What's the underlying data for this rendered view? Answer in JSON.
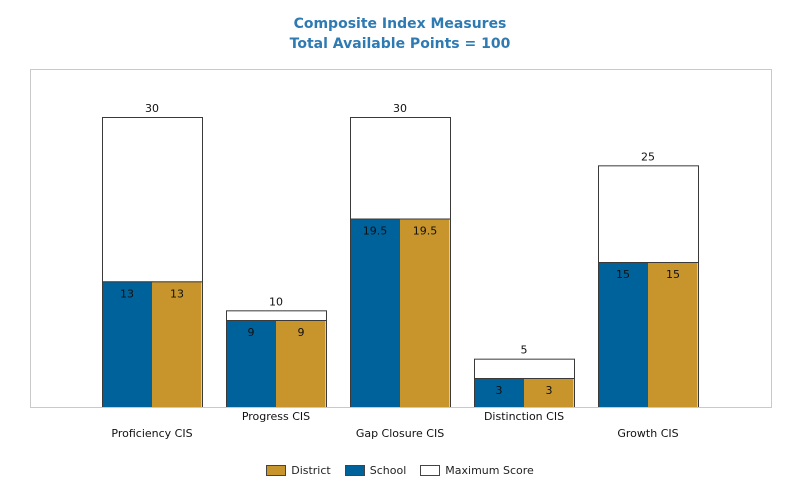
{
  "chart_data": {
    "type": "bar",
    "title": "Composite Index Measures",
    "subtitle": "Total Available Points = 100",
    "categories": [
      "Proficiency CIS",
      "Progress CIS",
      "Gap Closure CIS",
      "Distinction CIS",
      "Growth CIS"
    ],
    "series": [
      {
        "name": "School",
        "values": [
          13,
          9,
          19.5,
          3,
          15
        ],
        "color": "#00629b"
      },
      {
        "name": "District",
        "values": [
          13,
          9,
          19.5,
          3,
          15
        ],
        "color": "#c8952d"
      },
      {
        "name": "Maximum Score",
        "values": [
          30,
          10,
          30,
          5,
          25
        ],
        "color": "#ffffff"
      }
    ],
    "ylim": [
      0,
      30
    ],
    "grid": false,
    "legend_position": "bottom",
    "legend_order": [
      "District",
      "School",
      "Maximum Score"
    ]
  }
}
